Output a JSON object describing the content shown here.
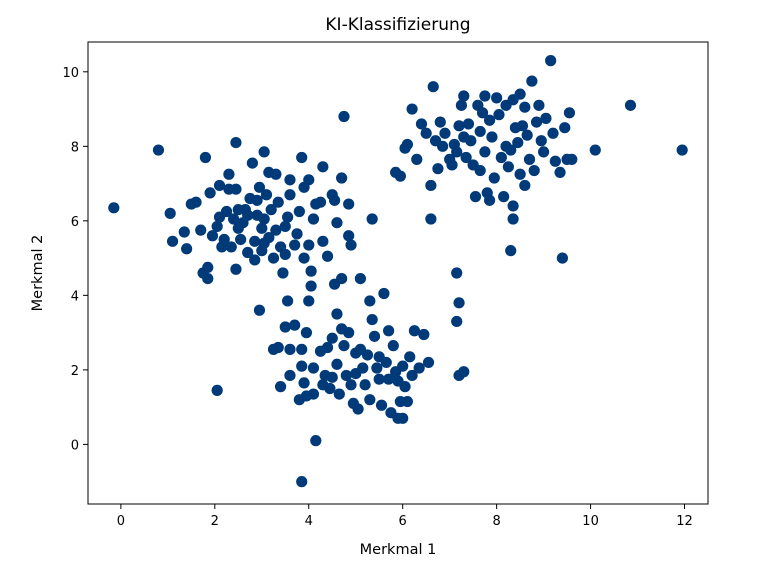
{
  "chart_data": {
    "type": "scatter",
    "title": "KI-Klassifizierung",
    "xlabel": "Merkmal 1",
    "ylabel": "Merkmal 2",
    "xlim": [
      -0.7,
      12.5
    ],
    "ylim": [
      -1.6,
      10.8
    ],
    "xticks": [
      "0",
      "2",
      "4",
      "6",
      "8",
      "10",
      "12"
    ],
    "yticks": [
      "0",
      "2",
      "4",
      "6",
      "8",
      "10"
    ],
    "xtick_values": [
      0,
      2,
      4,
      6,
      8,
      10,
      12
    ],
    "ytick_values": [
      0,
      2,
      4,
      6,
      8,
      10
    ],
    "grid": false,
    "marker_color": "#003a78",
    "series": [
      {
        "points": [
          [
            -0.15,
            6.35
          ],
          [
            0.8,
            7.9
          ],
          [
            1.05,
            6.2
          ],
          [
            1.1,
            5.45
          ],
          [
            1.35,
            5.7
          ],
          [
            1.4,
            5.25
          ],
          [
            1.5,
            6.45
          ],
          [
            1.6,
            6.5
          ],
          [
            1.7,
            5.75
          ],
          [
            1.75,
            4.6
          ],
          [
            1.8,
            7.7
          ],
          [
            1.85,
            4.75
          ],
          [
            1.85,
            4.45
          ],
          [
            1.9,
            6.75
          ],
          [
            1.95,
            5.6
          ],
          [
            2.05,
            5.85
          ],
          [
            2.1,
            6.95
          ],
          [
            2.1,
            6.1
          ],
          [
            2.15,
            5.3
          ],
          [
            2.2,
            5.5
          ],
          [
            2.25,
            6.25
          ],
          [
            2.3,
            7.25
          ],
          [
            2.3,
            6.85
          ],
          [
            2.35,
            5.3
          ],
          [
            2.4,
            6.05
          ],
          [
            2.45,
            8.1
          ],
          [
            2.45,
            6.85
          ],
          [
            2.45,
            4.7
          ],
          [
            2.5,
            6.3
          ],
          [
            2.5,
            5.8
          ],
          [
            2.55,
            5.5
          ],
          [
            2.6,
            5.95
          ],
          [
            2.65,
            6.3
          ],
          [
            2.7,
            6.15
          ],
          [
            2.7,
            5.15
          ],
          [
            2.8,
            7.55
          ],
          [
            2.85,
            5.45
          ],
          [
            2.85,
            4.95
          ],
          [
            2.9,
            6.55
          ],
          [
            2.9,
            6.15
          ],
          [
            2.95,
            6.9
          ],
          [
            3.0,
            5.8
          ],
          [
            3.0,
            5.2
          ],
          [
            3.05,
            7.85
          ],
          [
            3.05,
            6.05
          ],
          [
            3.1,
            6.7
          ],
          [
            3.15,
            7.3
          ],
          [
            3.15,
            5.55
          ],
          [
            3.2,
            6.3
          ],
          [
            3.25,
            5.0
          ],
          [
            3.3,
            5.75
          ],
          [
            3.3,
            7.25
          ],
          [
            3.35,
            6.5
          ],
          [
            3.4,
            5.3
          ],
          [
            3.45,
            4.6
          ],
          [
            3.5,
            5.85
          ],
          [
            3.55,
            6.1
          ],
          [
            3.6,
            7.1
          ],
          [
            3.6,
            6.7
          ],
          [
            3.7,
            5.35
          ],
          [
            3.75,
            5.65
          ],
          [
            3.8,
            6.25
          ],
          [
            3.85,
            7.7
          ],
          [
            3.9,
            6.9
          ],
          [
            3.9,
            5.0
          ],
          [
            4.0,
            7.1
          ],
          [
            4.0,
            5.35
          ],
          [
            4.05,
            4.65
          ],
          [
            4.1,
            6.05
          ],
          [
            4.15,
            6.45
          ],
          [
            4.25,
            6.5
          ],
          [
            4.3,
            7.45
          ],
          [
            4.3,
            5.45
          ],
          [
            4.4,
            5.05
          ],
          [
            4.5,
            6.7
          ],
          [
            4.55,
            6.55
          ],
          [
            4.6,
            5.95
          ],
          [
            4.7,
            7.15
          ],
          [
            4.75,
            8.8
          ],
          [
            4.85,
            6.45
          ],
          [
            4.85,
            5.6
          ],
          [
            4.9,
            5.35
          ],
          [
            5.35,
            6.05
          ],
          [
            3.05,
            5.4
          ],
          [
            2.75,
            6.6
          ],
          [
            3.5,
            5.1
          ],
          [
            2.05,
            1.45
          ],
          [
            2.95,
            3.6
          ],
          [
            3.25,
            2.55
          ],
          [
            3.35,
            2.6
          ],
          [
            3.4,
            1.55
          ],
          [
            3.5,
            3.15
          ],
          [
            3.55,
            3.85
          ],
          [
            3.6,
            2.55
          ],
          [
            3.6,
            1.85
          ],
          [
            3.7,
            3.2
          ],
          [
            3.8,
            1.2
          ],
          [
            3.85,
            2.55
          ],
          [
            3.85,
            2.1
          ],
          [
            3.9,
            1.65
          ],
          [
            3.95,
            3.0
          ],
          [
            3.95,
            1.3
          ],
          [
            4.0,
            3.85
          ],
          [
            4.05,
            4.25
          ],
          [
            4.1,
            2.05
          ],
          [
            4.1,
            1.35
          ],
          [
            4.15,
            0.1
          ],
          [
            3.85,
            -1.0
          ],
          [
            4.25,
            2.5
          ],
          [
            4.3,
            1.6
          ],
          [
            4.35,
            1.85
          ],
          [
            4.4,
            2.6
          ],
          [
            4.45,
            1.5
          ],
          [
            4.5,
            2.85
          ],
          [
            4.5,
            1.8
          ],
          [
            4.55,
            4.3
          ],
          [
            4.6,
            3.5
          ],
          [
            4.6,
            2.15
          ],
          [
            4.65,
            1.35
          ],
          [
            4.7,
            4.45
          ],
          [
            4.7,
            3.1
          ],
          [
            4.75,
            2.65
          ],
          [
            4.8,
            1.85
          ],
          [
            4.85,
            3.0
          ],
          [
            4.9,
            1.6
          ],
          [
            4.95,
            1.1
          ],
          [
            5.0,
            2.45
          ],
          [
            5.0,
            1.9
          ],
          [
            5.05,
            0.95
          ],
          [
            5.1,
            4.45
          ],
          [
            5.1,
            2.55
          ],
          [
            5.15,
            2.05
          ],
          [
            5.2,
            1.6
          ],
          [
            5.25,
            2.4
          ],
          [
            5.3,
            3.85
          ],
          [
            5.3,
            1.2
          ],
          [
            5.35,
            3.35
          ],
          [
            5.4,
            2.9
          ],
          [
            5.45,
            2.05
          ],
          [
            5.5,
            1.75
          ],
          [
            5.55,
            1.05
          ],
          [
            5.6,
            4.05
          ],
          [
            5.65,
            2.2
          ],
          [
            5.7,
            3.05
          ],
          [
            5.7,
            1.75
          ],
          [
            5.75,
            0.85
          ],
          [
            5.8,
            2.65
          ],
          [
            5.85,
            1.95
          ],
          [
            5.9,
            0.7
          ],
          [
            5.95,
            1.15
          ],
          [
            6.0,
            2.1
          ],
          [
            6.0,
            0.7
          ],
          [
            6.05,
            1.55
          ],
          [
            6.1,
            1.15
          ],
          [
            6.15,
            2.35
          ],
          [
            6.2,
            1.85
          ],
          [
            6.25,
            3.05
          ],
          [
            6.35,
            2.05
          ],
          [
            6.45,
            2.95
          ],
          [
            6.55,
            2.2
          ],
          [
            5.5,
            2.35
          ],
          [
            5.9,
            1.7
          ],
          [
            7.15,
            4.6
          ],
          [
            7.15,
            3.3
          ],
          [
            7.2,
            3.8
          ],
          [
            7.2,
            1.85
          ],
          [
            7.3,
            1.95
          ],
          [
            5.85,
            7.3
          ],
          [
            5.95,
            7.2
          ],
          [
            6.05,
            7.95
          ],
          [
            6.1,
            8.05
          ],
          [
            6.2,
            9.0
          ],
          [
            6.3,
            7.65
          ],
          [
            6.4,
            8.6
          ],
          [
            6.5,
            8.35
          ],
          [
            6.6,
            6.95
          ],
          [
            6.6,
            6.05
          ],
          [
            6.65,
            9.6
          ],
          [
            6.7,
            8.15
          ],
          [
            6.75,
            7.4
          ],
          [
            6.8,
            8.65
          ],
          [
            6.85,
            8.0
          ],
          [
            6.9,
            8.35
          ],
          [
            7.0,
            7.65
          ],
          [
            7.05,
            7.5
          ],
          [
            7.1,
            8.05
          ],
          [
            7.15,
            7.85
          ],
          [
            7.2,
            8.55
          ],
          [
            7.25,
            9.1
          ],
          [
            7.3,
            9.35
          ],
          [
            7.3,
            8.25
          ],
          [
            7.35,
            7.7
          ],
          [
            7.4,
            8.6
          ],
          [
            7.45,
            8.15
          ],
          [
            7.5,
            7.5
          ],
          [
            7.55,
            6.65
          ],
          [
            7.6,
            9.1
          ],
          [
            7.65,
            8.4
          ],
          [
            7.65,
            7.35
          ],
          [
            7.7,
            8.9
          ],
          [
            7.75,
            9.35
          ],
          [
            7.75,
            7.85
          ],
          [
            7.8,
            6.75
          ],
          [
            7.85,
            8.7
          ],
          [
            7.9,
            8.25
          ],
          [
            7.95,
            7.15
          ],
          [
            8.0,
            9.3
          ],
          [
            8.05,
            8.85
          ],
          [
            8.1,
            7.7
          ],
          [
            8.15,
            6.65
          ],
          [
            8.2,
            9.1
          ],
          [
            8.2,
            8.0
          ],
          [
            8.25,
            7.45
          ],
          [
            8.3,
            7.9
          ],
          [
            8.35,
            9.25
          ],
          [
            8.4,
            8.5
          ],
          [
            8.45,
            8.1
          ],
          [
            8.5,
            9.4
          ],
          [
            8.5,
            7.25
          ],
          [
            8.55,
            8.55
          ],
          [
            8.6,
            9.05
          ],
          [
            8.65,
            8.3
          ],
          [
            8.7,
            7.65
          ],
          [
            8.75,
            9.75
          ],
          [
            8.8,
            7.35
          ],
          [
            8.85,
            8.65
          ],
          [
            8.9,
            9.1
          ],
          [
            8.95,
            8.15
          ],
          [
            9.0,
            7.85
          ],
          [
            9.05,
            8.75
          ],
          [
            9.15,
            10.3
          ],
          [
            9.2,
            8.35
          ],
          [
            9.25,
            7.6
          ],
          [
            9.35,
            7.3
          ],
          [
            9.45,
            8.5
          ],
          [
            9.5,
            7.65
          ],
          [
            9.55,
            8.9
          ],
          [
            9.6,
            7.65
          ],
          [
            9.4,
            5.0
          ],
          [
            8.35,
            6.4
          ],
          [
            8.35,
            6.05
          ],
          [
            8.3,
            5.2
          ],
          [
            10.1,
            7.9
          ],
          [
            10.85,
            9.1
          ],
          [
            11.95,
            7.9
          ],
          [
            8.6,
            6.95
          ],
          [
            7.85,
            6.55
          ]
        ]
      }
    ]
  }
}
